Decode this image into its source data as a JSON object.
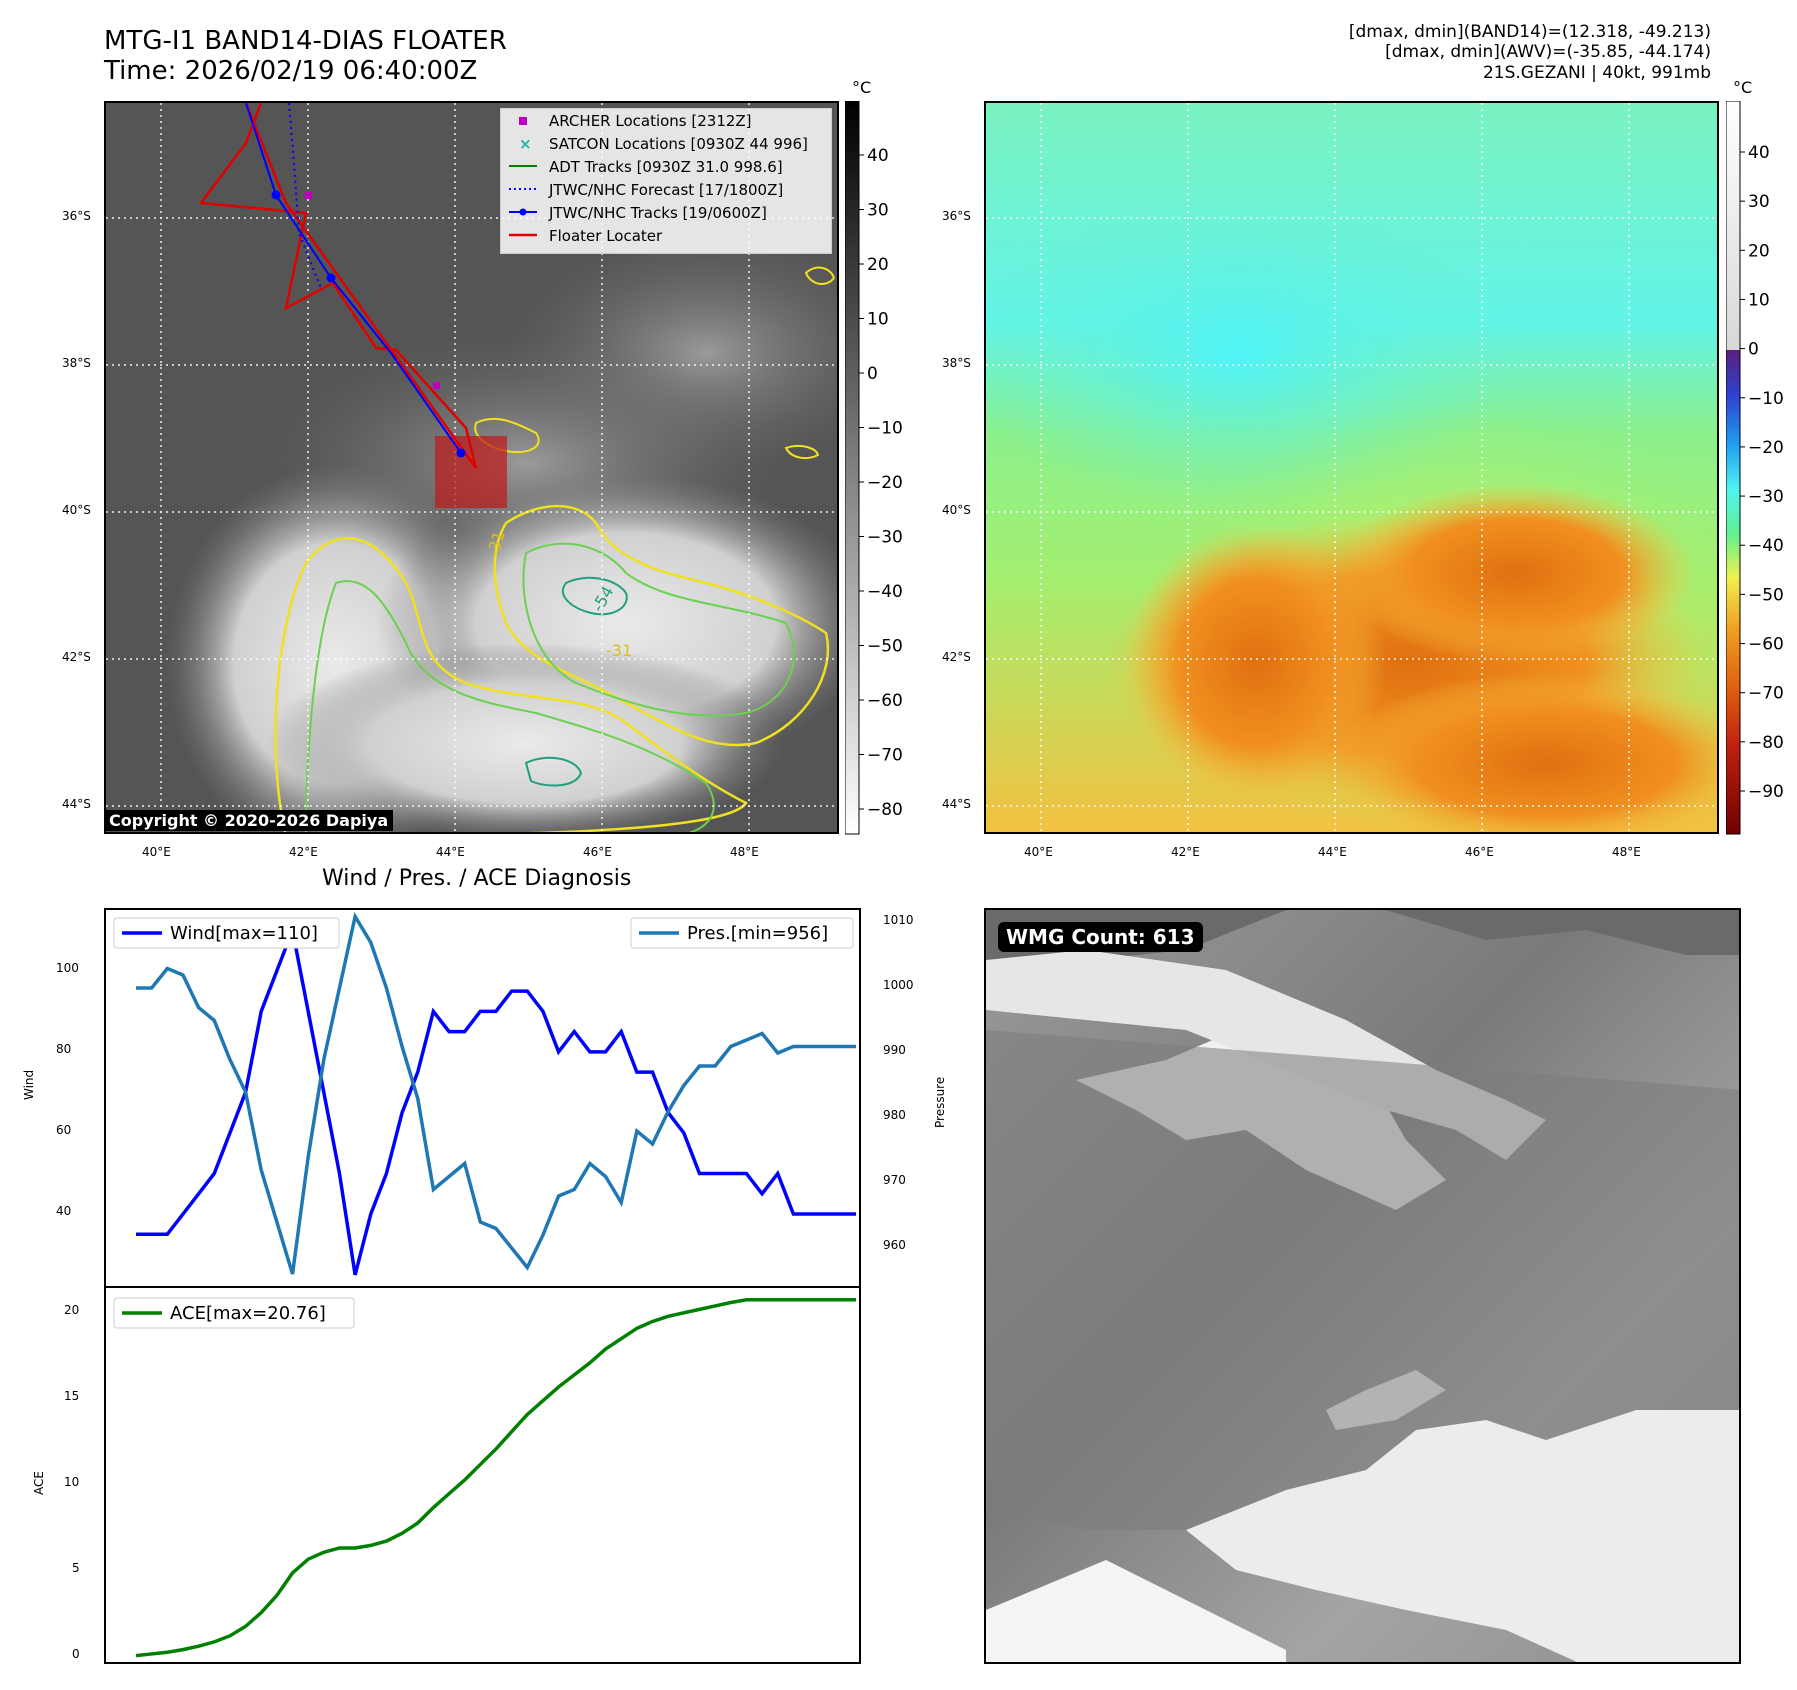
{
  "header": {
    "title_line1": "MTG-I1 BAND14-DIAS FLOATER",
    "title_line2": "Time: 2026/02/19 06:40:00Z",
    "info_line1": "[dmax, dmin](BAND14)=(12.318, -49.213)",
    "info_line2": "[dmax, dmin](AWV)=(-35.85, -44.174)",
    "info_line3": "21S.GEZANI | 40kt, 991mb"
  },
  "ir_panel": {
    "colorbar_unit": "°C",
    "colorbar_ticks": [
      "40",
      "30",
      "20",
      "10",
      "0",
      "−10",
      "−20",
      "−30",
      "−40",
      "−50",
      "−60",
      "−70",
      "−80"
    ],
    "lat_labels": [
      "36°S",
      "38°S",
      "40°S",
      "42°S",
      "44°S"
    ],
    "lon_labels": [
      "40°E",
      "42°E",
      "44°E",
      "46°E",
      "48°E"
    ],
    "copyright": "Copyright © 2020-2026 Dapiya",
    "legend": [
      {
        "label": "ARCHER Locations [2312Z]",
        "color": "#c000c0"
      },
      {
        "label": "SATCON Locations [0930Z 44 996]",
        "color": "#19b3b3"
      },
      {
        "label": "ADT Tracks [0930Z 31.0 998.6]",
        "color": "#008000"
      },
      {
        "label": "JTWC/NHC Forecast [17/1800Z]",
        "color": "#0000ff"
      },
      {
        "label": "JTWC/NHC Tracks [19/0600Z]",
        "color": "#0000ff"
      },
      {
        "label": "Floater Locater",
        "color": "#e00000"
      }
    ],
    "contour_labels": [
      "-31",
      "-54",
      "-31"
    ]
  },
  "avw_panel": {
    "colorbar_unit": "°C",
    "colorbar_ticks": [
      "40",
      "30",
      "20",
      "10",
      "0",
      "−10",
      "−20",
      "−30",
      "−40",
      "−50",
      "−60",
      "−70",
      "−80",
      "−90"
    ],
    "lat_labels": [
      "36°S",
      "38°S",
      "40°S",
      "42°S",
      "44°S"
    ],
    "lon_labels": [
      "40°E",
      "42°E",
      "44°E",
      "46°E",
      "48°E"
    ]
  },
  "timeseries": {
    "section_title": "Wind / Pres. / ACE Diagnosis",
    "wind_label": "Wind",
    "pressure_label": "Pressure",
    "ace_label": "ACE",
    "wind_legend": "Wind[max=110]",
    "pres_legend": "Pres.[min=956]",
    "ace_legend": "ACE[max=20.76]"
  },
  "wmg": {
    "count_label": "WMG Count: 613"
  },
  "chart_data": [
    {
      "type": "line",
      "title": "Wind / Pres. / ACE Diagnosis",
      "ylabel": "Wind",
      "ylim": [
        22,
        115
      ],
      "x": [
        0,
        1,
        2,
        3,
        4,
        5,
        6,
        7,
        8,
        9,
        10,
        11,
        12,
        13,
        14,
        15,
        16,
        17,
        18,
        19,
        20,
        21,
        22,
        23,
        24,
        25,
        26,
        27,
        28,
        29,
        30,
        31,
        32,
        33,
        34,
        35,
        36,
        37,
        38,
        39,
        40,
        41,
        42,
        43,
        44,
        45,
        46
      ],
      "series": [
        {
          "name": "Wind[max=110]",
          "color": "#0000ff",
          "values": [
            35,
            35,
            35,
            40,
            45,
            50,
            60,
            70,
            90,
            100,
            110,
            90,
            70,
            50,
            25,
            40,
            50,
            65,
            75,
            90,
            85,
            85,
            90,
            90,
            95,
            95,
            90,
            80,
            85,
            80,
            80,
            85,
            75,
            75,
            65,
            60,
            50,
            50,
            50,
            50,
            45,
            50,
            40,
            40,
            40,
            40,
            40
          ]
        }
      ]
    },
    {
      "type": "line",
      "ylabel": "Pressure",
      "ylim": [
        954,
        1012
      ],
      "x": [
        0,
        1,
        2,
        3,
        4,
        5,
        6,
        7,
        8,
        9,
        10,
        11,
        12,
        13,
        14,
        15,
        16,
        17,
        18,
        19,
        20,
        21,
        22,
        23,
        24,
        25,
        26,
        27,
        28,
        29,
        30,
        31,
        32,
        33,
        34,
        35,
        36,
        37,
        38,
        39,
        40,
        41,
        42,
        43,
        44,
        45,
        46
      ],
      "series": [
        {
          "name": "Pres.[min=956]",
          "color": "#1f77b4",
          "values": [
            1000,
            1000,
            1003,
            1002,
            997,
            995,
            989,
            984,
            972,
            964,
            956,
            974,
            989,
            1000,
            1011,
            1007,
            1000,
            991,
            983,
            969,
            971,
            973,
            964,
            963,
            960,
            957,
            962,
            968,
            969,
            973,
            971,
            967,
            978,
            976,
            981,
            985,
            988,
            988,
            991,
            992,
            993,
            990,
            991,
            991,
            991,
            991,
            991
          ]
        }
      ]
    },
    {
      "type": "line",
      "ylabel": "ACE",
      "ylim": [
        -0.5,
        21.5
      ],
      "x": [
        0,
        1,
        2,
        3,
        4,
        5,
        6,
        7,
        8,
        9,
        10,
        11,
        12,
        13,
        14,
        15,
        16,
        17,
        18,
        19,
        20,
        21,
        22,
        23,
        24,
        25,
        26,
        27,
        28,
        29,
        30,
        31,
        32,
        33,
        34,
        35,
        36,
        37,
        38,
        39,
        40,
        41,
        42,
        43,
        44,
        45,
        46
      ],
      "series": [
        {
          "name": "ACE[max=20.76]",
          "color": "#008000",
          "values": [
            0.1,
            0.2,
            0.3,
            0.45,
            0.65,
            0.9,
            1.25,
            1.8,
            2.6,
            3.6,
            4.9,
            5.7,
            6.1,
            6.35,
            6.35,
            6.5,
            6.75,
            7.2,
            7.8,
            8.7,
            9.5,
            10.3,
            11.2,
            12.1,
            13.1,
            14.1,
            14.9,
            15.7,
            16.4,
            17.1,
            17.9,
            18.5,
            19.1,
            19.5,
            19.8,
            20.0,
            20.2,
            20.4,
            20.6,
            20.76,
            20.76,
            20.76,
            20.76,
            20.76,
            20.76,
            20.76,
            20.76
          ]
        }
      ]
    }
  ]
}
